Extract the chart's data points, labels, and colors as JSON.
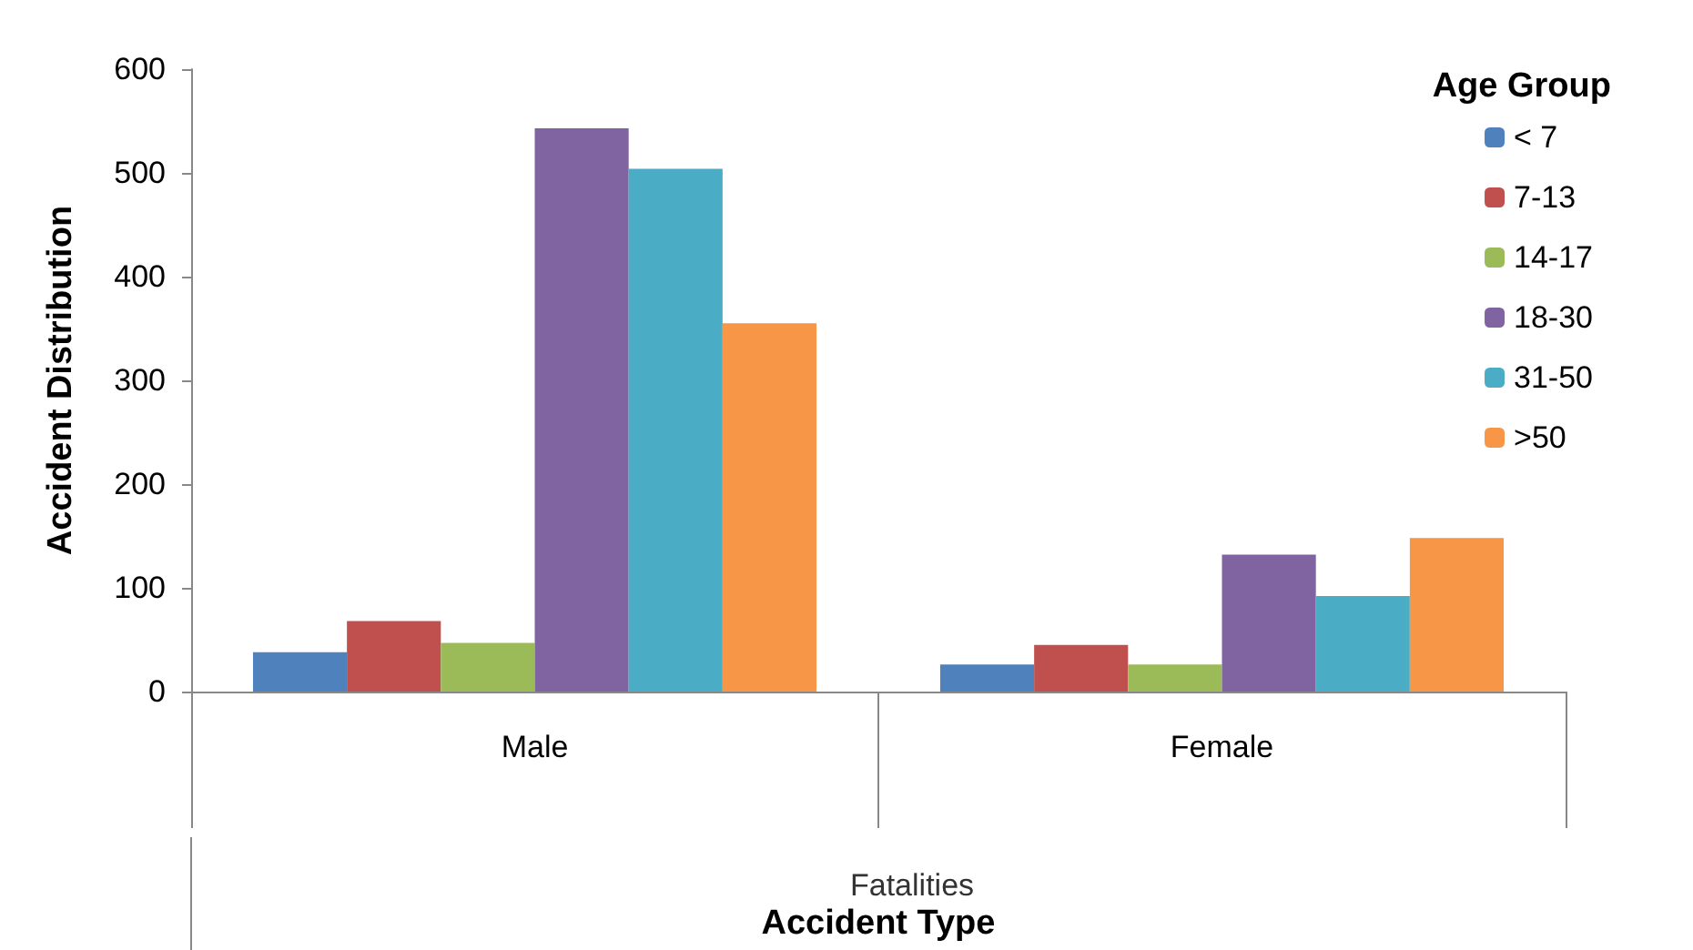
{
  "chart_data": {
    "type": "bar",
    "xlabel": "Accident Type",
    "ylabel": "Accident Distribution",
    "legend_title": "Age Group",
    "annotations": [
      "Fatalities"
    ],
    "categories": [
      "Male",
      "Female"
    ],
    "series": [
      {
        "name": "< 7",
        "color": "#4f81bd",
        "values": [
          38,
          26
        ]
      },
      {
        "name": "7-13",
        "color": "#c0504d",
        "values": [
          68,
          45
        ]
      },
      {
        "name": "14-17",
        "color": "#9bbb59",
        "values": [
          47,
          26
        ]
      },
      {
        "name": "18-30",
        "color": "#8064a2",
        "values": [
          543,
          132
        ]
      },
      {
        "name": "31-50",
        "color": "#4bacc6",
        "values": [
          504,
          92
        ]
      },
      {
        "name": ">50",
        "color": "#f79646",
        "values": [
          355,
          148
        ]
      }
    ],
    "ylim": [
      0,
      600
    ],
    "yticks": [
      0,
      100,
      200,
      300,
      400,
      500,
      600
    ],
    "grid": false,
    "legend": "top right"
  }
}
